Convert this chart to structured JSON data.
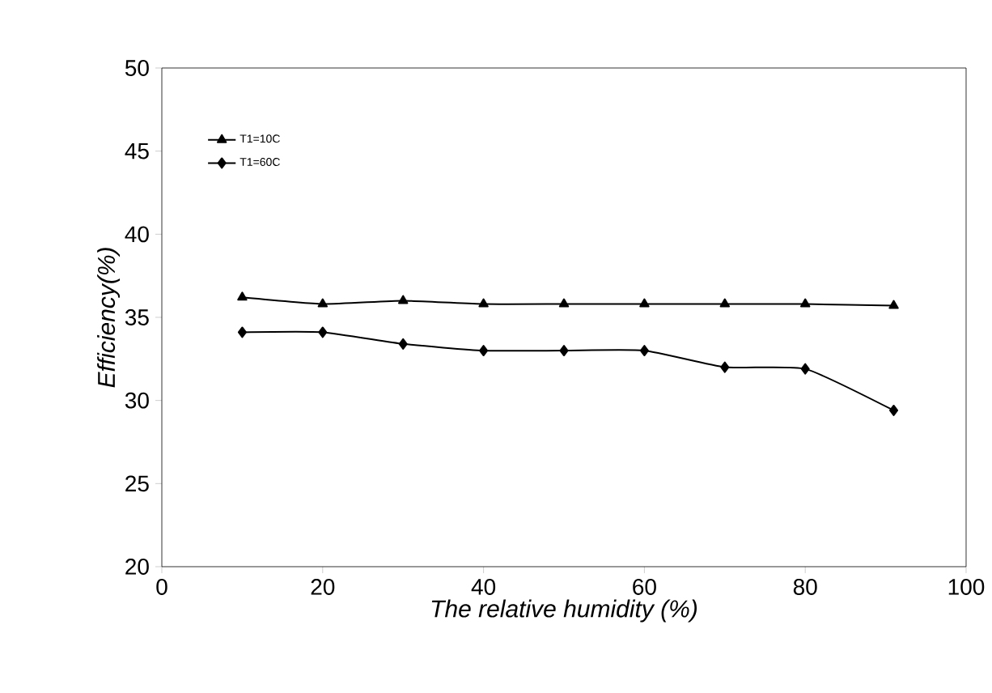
{
  "chart_data": {
    "type": "line",
    "xlabel": "The relative humidity (%)",
    "ylabel": "Efficiency(%)",
    "xlim": [
      0,
      100
    ],
    "xticks": [
      0,
      20,
      40,
      60,
      80,
      100
    ],
    "ylim": [
      20,
      50
    ],
    "yticks": [
      20,
      25,
      30,
      35,
      40,
      45,
      50
    ],
    "grid": false,
    "legend": "top left",
    "line_style": "solid",
    "series": [
      {
        "name": "T1=10C",
        "color": "#000000",
        "marker": "triangle",
        "x": [
          10,
          20,
          30,
          40,
          50,
          60,
          70,
          80,
          91
        ],
        "values": [
          36.2,
          35.8,
          36.0,
          35.8,
          35.8,
          35.8,
          35.8,
          35.8,
          35.7
        ]
      },
      {
        "name": "T1=60C",
        "color": "#000000",
        "marker": "diamond",
        "x": [
          10,
          20,
          30,
          40,
          50,
          60,
          70,
          80,
          91
        ],
        "values": [
          34.1,
          34.1,
          33.4,
          33.0,
          33.0,
          33.0,
          32.0,
          31.9,
          29.4
        ]
      }
    ]
  }
}
